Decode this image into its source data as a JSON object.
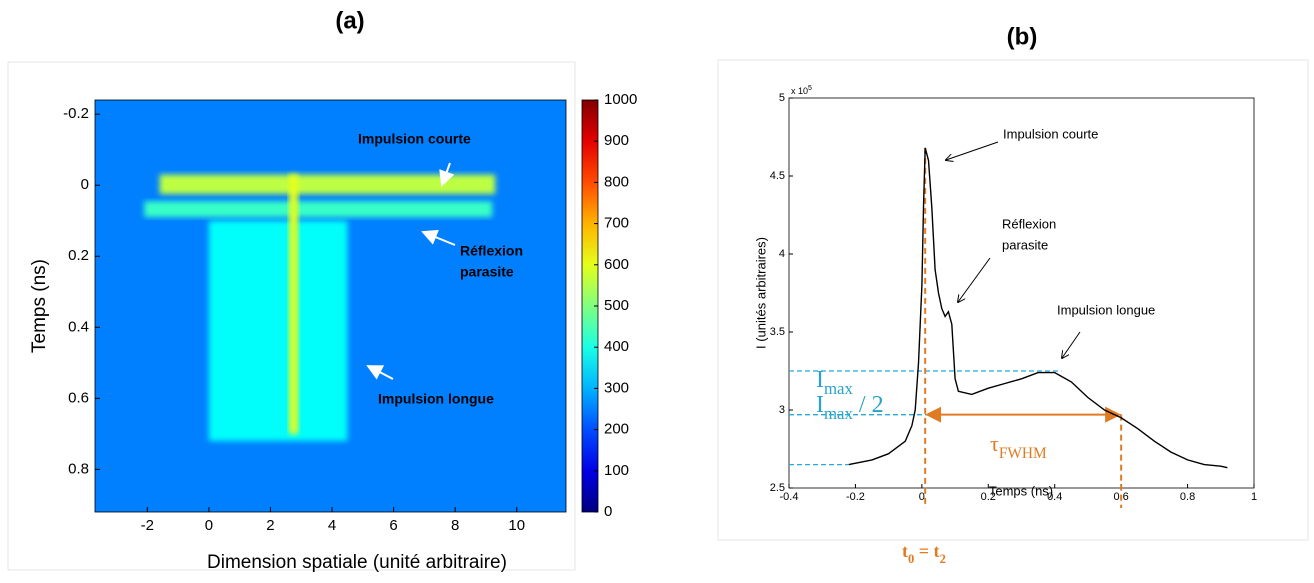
{
  "chart_data": [
    {
      "type": "heatmap",
      "title": "(a)",
      "xlabel": "Dimension spatiale (unité arbitraire)",
      "ylabel": "Temps (ns)",
      "xlim": [
        -3.7,
        11.6
      ],
      "xticks": [
        -2,
        0,
        2,
        4,
        6,
        8,
        10
      ],
      "ylim": [
        0.92,
        -0.24
      ],
      "yticks": [
        -0.2,
        0,
        0.2,
        0.4,
        0.6,
        0.8
      ],
      "colormap": "jet",
      "clim": [
        0,
        1000
      ],
      "cticks": [
        0,
        100,
        200,
        300,
        400,
        500,
        600,
        700,
        800,
        900,
        1000
      ],
      "background": 250,
      "regions": [
        {
          "x": [
            0,
            4.5
          ],
          "y": [
            0.1,
            0.72
          ],
          "value": 380
        },
        {
          "x": [
            -2.1,
            9.2
          ],
          "y": [
            0.045,
            0.09
          ],
          "value": 430
        },
        {
          "x": [
            -1.6,
            9.3
          ],
          "y": [
            -0.03,
            0.025
          ],
          "value": 560
        },
        {
          "x": [
            2.6,
            2.9
          ],
          "y": [
            -0.03,
            0.7
          ],
          "value": 600
        }
      ],
      "annotations": [
        {
          "text": [
            "Impulsion courte"
          ]
        },
        {
          "text": [
            "Réflexion",
            "parasite"
          ]
        },
        {
          "text": [
            "Impulsion longue"
          ]
        }
      ]
    },
    {
      "type": "line",
      "title": "(b)",
      "xlabel": "Temps (ns)",
      "ylabel": "I (unités arbitraires)",
      "xlim": [
        -0.4,
        1
      ],
      "xticks": [
        -0.4,
        -0.2,
        0,
        0.2,
        0.4,
        0.6,
        0.8,
        1
      ],
      "ylim": [
        2.5,
        5
      ],
      "yticks": [
        2.5,
        3,
        3.5,
        4,
        4.5,
        5
      ],
      "y_multiplier": {
        "base": "x 10",
        "exponent": 5
      },
      "color": "#000000",
      "x": [
        -0.22,
        -0.15,
        -0.1,
        -0.05,
        -0.03,
        -0.02,
        -0.01,
        0,
        0.005,
        0.01,
        0.02,
        0.03,
        0.04,
        0.05,
        0.06,
        0.07,
        0.08,
        0.09,
        0.1,
        0.11,
        0.15,
        0.2,
        0.25,
        0.3,
        0.35,
        0.4,
        0.45,
        0.5,
        0.55,
        0.6,
        0.65,
        0.7,
        0.75,
        0.8,
        0.85,
        0.9,
        0.92
      ],
      "values": [
        2.65,
        2.68,
        2.72,
        2.8,
        2.9,
        3.0,
        3.3,
        3.8,
        4.3,
        4.68,
        4.6,
        4.3,
        3.9,
        3.75,
        3.65,
        3.6,
        3.63,
        3.55,
        3.2,
        3.12,
        3.1,
        3.14,
        3.17,
        3.2,
        3.24,
        3.24,
        3.18,
        3.08,
        3.0,
        2.95,
        2.88,
        2.8,
        2.73,
        2.68,
        2.65,
        2.64,
        2.63
      ],
      "hlines": [
        {
          "y": 3.25,
          "x_end": 0.42
        },
        {
          "y": 2.97,
          "x_end": 0.6
        },
        {
          "y": 2.65,
          "x_end": -0.22
        }
      ],
      "vlines": [
        {
          "x": 0.01,
          "y_top": 4.68
        },
        {
          "x": 0.6,
          "y_top": 2.97
        }
      ],
      "annotations": [
        {
          "text": [
            "Impulsion courte"
          ]
        },
        {
          "text": [
            "Réflexion",
            "parasite"
          ]
        },
        {
          "text": [
            "Impulsion longue"
          ]
        }
      ],
      "labels": {
        "imax": [
          "I",
          "max"
        ],
        "half": [
          "I",
          "max",
          " / 2"
        ],
        "tau": [
          "τ",
          "FWHM"
        ],
        "t": [
          "t",
          "0",
          " = t",
          "2"
        ]
      }
    }
  ]
}
